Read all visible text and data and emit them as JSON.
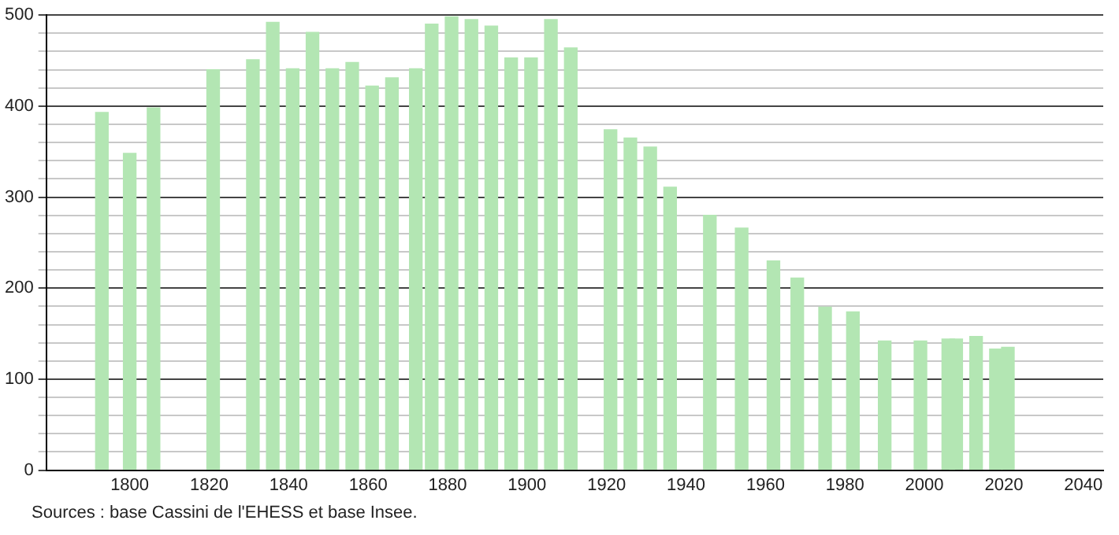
{
  "chart_data": {
    "type": "bar",
    "x": [
      1793,
      1800,
      1806,
      1821,
      1831,
      1836,
      1841,
      1846,
      1851,
      1856,
      1861,
      1866,
      1872,
      1876,
      1881,
      1886,
      1891,
      1896,
      1901,
      1906,
      1911,
      1921,
      1926,
      1931,
      1936,
      1946,
      1954,
      1962,
      1968,
      1975,
      1982,
      1990,
      1999,
      2006,
      2008,
      2013,
      2018,
      2021
    ],
    "values": [
      393,
      348,
      398,
      440,
      451,
      492,
      441,
      481,
      441,
      448,
      422,
      431,
      441,
      490,
      498,
      495,
      488,
      453,
      453,
      495,
      464,
      374,
      365,
      355,
      311,
      280,
      266,
      230,
      211,
      179,
      174,
      142,
      142,
      144,
      144,
      147,
      133,
      135
    ],
    "color": "#b3e6b3",
    "xlim": [
      1779,
      2045
    ],
    "xticks": [
      1800,
      1820,
      1840,
      1860,
      1880,
      1900,
      1920,
      1940,
      1960,
      1980,
      2000,
      2020,
      2040
    ],
    "ylim": [
      0,
      500
    ],
    "yticks": [
      0,
      {
        "value": 20,
        "label": null
      },
      {
        "value": 40,
        "label": null
      },
      {
        "value": 60,
        "label": null
      },
      {
        "value": 80,
        "label": null
      },
      100,
      {
        "value": 120,
        "label": null
      },
      {
        "value": 140,
        "label": null
      },
      {
        "value": 160,
        "label": null
      },
      {
        "value": 180,
        "label": null
      },
      200,
      {
        "value": 220,
        "label": null
      },
      {
        "value": 240,
        "label": null
      },
      {
        "value": 260,
        "label": null
      },
      {
        "value": 280,
        "label": null
      },
      300,
      {
        "value": 320,
        "label": null
      },
      {
        "value": 340,
        "label": null
      },
      {
        "value": 360,
        "label": null
      },
      {
        "value": 380,
        "label": null
      },
      400,
      {
        "value": 420,
        "label": null
      },
      {
        "value": 440,
        "label": null
      },
      {
        "value": 460,
        "label": null
      },
      {
        "value": 480,
        "label": null
      },
      500
    ],
    "grid": "y",
    "annotations": [
      "Sources : base Cassini de l'EHESS et base Insee."
    ]
  }
}
